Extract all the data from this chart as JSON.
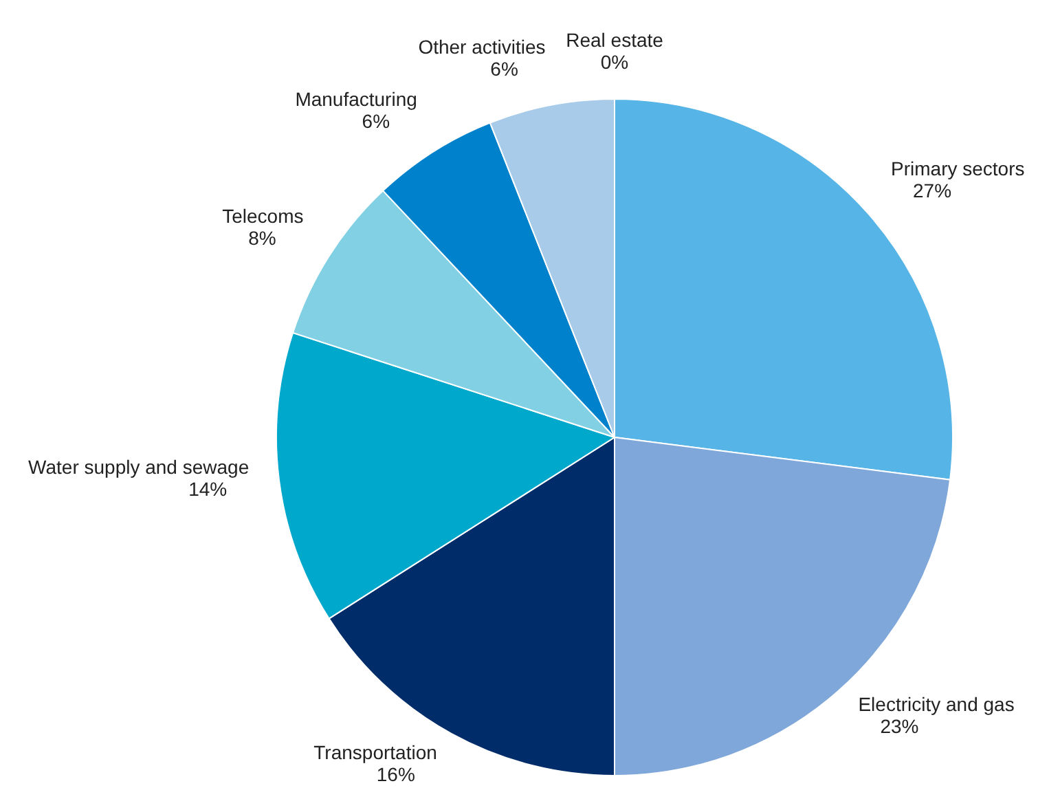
{
  "chart_data": {
    "type": "pie",
    "categories": [
      "Primary sectors",
      "Electricity and gas",
      "Transportation",
      "Water supply and sewage",
      "Telecoms",
      "Manufacturing",
      "Other activities",
      "Real estate"
    ],
    "values": [
      27,
      23,
      16,
      14,
      8,
      6,
      6,
      0
    ],
    "value_labels": [
      "27%",
      "23%",
      "16%",
      "14%",
      "8%",
      "6%",
      "6%",
      "0%"
    ],
    "colors": [
      "#56b4e6",
      "#7fa7d9",
      "#002d6a",
      "#00a8cc",
      "#82d0e3",
      "#0081cc",
      "#a9cbea",
      "#c9dcef"
    ]
  }
}
